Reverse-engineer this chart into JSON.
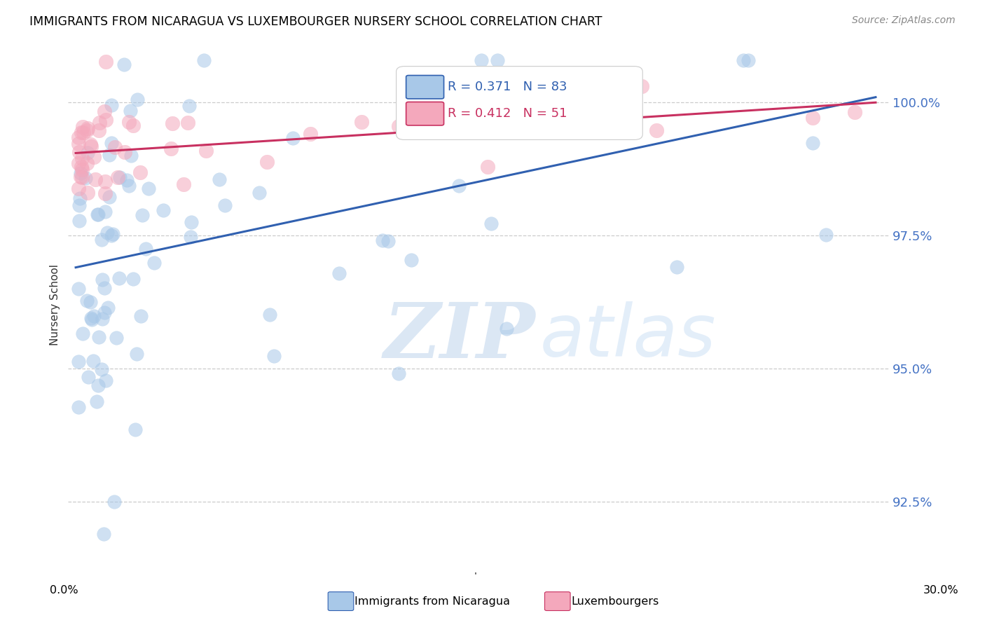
{
  "title": "IMMIGRANTS FROM NICARAGUA VS LUXEMBOURGER NURSERY SCHOOL CORRELATION CHART",
  "source": "Source: ZipAtlas.com",
  "ylabel": "Nursery School",
  "yticks": [
    92.5,
    95.0,
    97.5,
    100.0
  ],
  "ytick_labels": [
    "92.5%",
    "95.0%",
    "97.5%",
    "100.0%"
  ],
  "ymin": 91.2,
  "ymax": 101.2,
  "xmin": -0.003,
  "xmax": 0.305,
  "blue_R": 0.371,
  "blue_N": 83,
  "pink_R": 0.412,
  "pink_N": 51,
  "blue_color": "#A8C8E8",
  "pink_color": "#F4A8BC",
  "blue_line_color": "#3060B0",
  "pink_line_color": "#C83060",
  "legend_blue_label": "Immigrants from Nicaragua",
  "legend_pink_label": "Luxembourgers",
  "blue_line_x0": 0.0,
  "blue_line_y0": 96.9,
  "blue_line_x1": 0.3,
  "blue_line_y1": 100.1,
  "pink_line_x0": 0.0,
  "pink_line_y0": 99.05,
  "pink_line_x1": 0.3,
  "pink_line_y1": 100.0
}
